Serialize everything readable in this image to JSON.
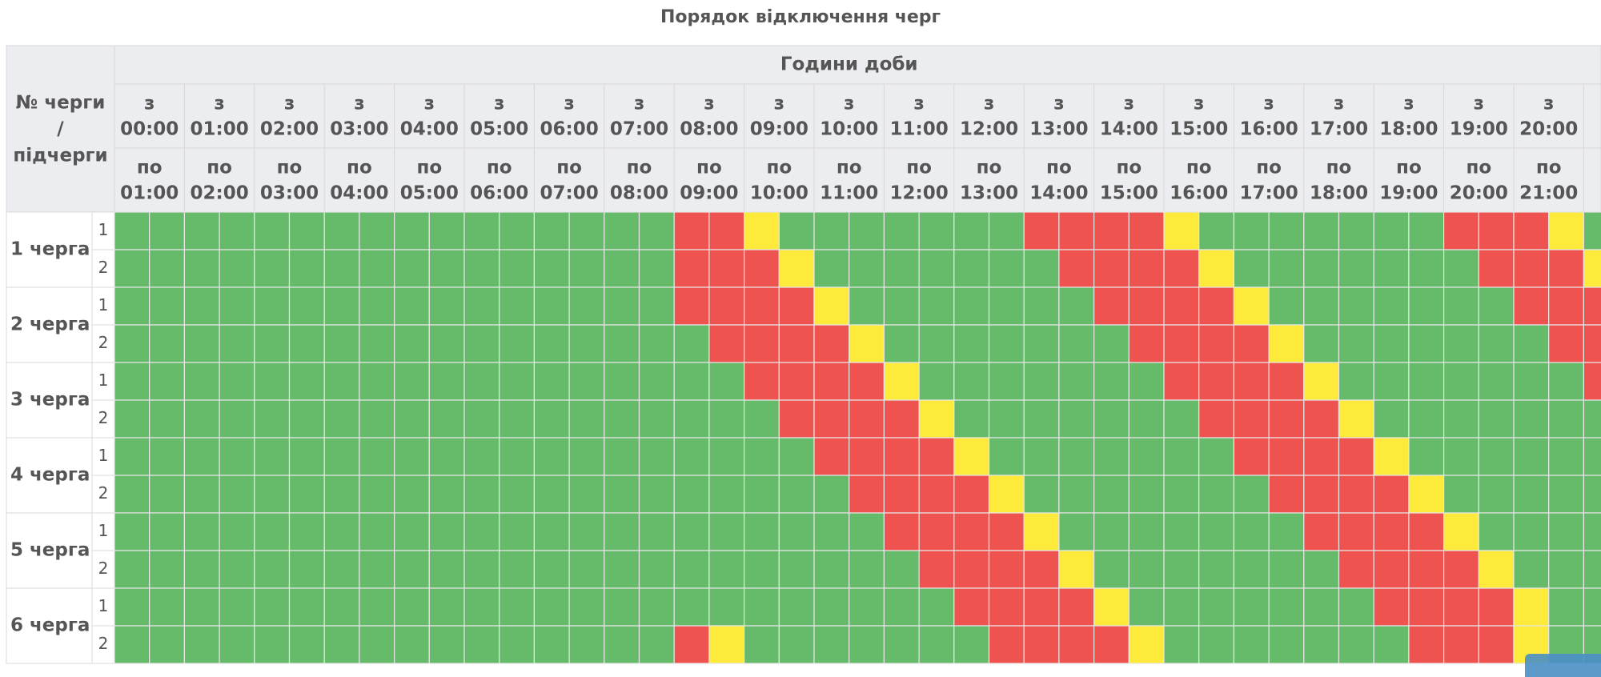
{
  "title": "Порядок відключення черг",
  "header": {
    "queue_column": [
      "№ черги",
      "/",
      "підчерги"
    ],
    "hours_label": "Години доби"
  },
  "columns": [
    {
      "from": [
        "з",
        "00:00"
      ],
      "to": [
        "по",
        "01:00"
      ]
    },
    {
      "from": [
        "з",
        "01:00"
      ],
      "to": [
        "по",
        "02:00"
      ]
    },
    {
      "from": [
        "з",
        "02:00"
      ],
      "to": [
        "по",
        "03:00"
      ]
    },
    {
      "from": [
        "з",
        "03:00"
      ],
      "to": [
        "по",
        "04:00"
      ]
    },
    {
      "from": [
        "з",
        "04:00"
      ],
      "to": [
        "по",
        "05:00"
      ]
    },
    {
      "from": [
        "з",
        "05:00"
      ],
      "to": [
        "по",
        "06:00"
      ]
    },
    {
      "from": [
        "з",
        "06:00"
      ],
      "to": [
        "по",
        "07:00"
      ]
    },
    {
      "from": [
        "з",
        "07:00"
      ],
      "to": [
        "по",
        "08:00"
      ]
    },
    {
      "from": [
        "з",
        "08:00"
      ],
      "to": [
        "по",
        "09:00"
      ]
    },
    {
      "from": [
        "з",
        "09:00"
      ],
      "to": [
        "по",
        "10:00"
      ]
    },
    {
      "from": [
        "з",
        "10:00"
      ],
      "to": [
        "по",
        "11:00"
      ]
    },
    {
      "from": [
        "з",
        "11:00"
      ],
      "to": [
        "по",
        "12:00"
      ]
    },
    {
      "from": [
        "з",
        "12:00"
      ],
      "to": [
        "по",
        "13:00"
      ]
    },
    {
      "from": [
        "з",
        "13:00"
      ],
      "to": [
        "по",
        "14:00"
      ]
    },
    {
      "from": [
        "з",
        "14:00"
      ],
      "to": [
        "по",
        "15:00"
      ]
    },
    {
      "from": [
        "з",
        "15:00"
      ],
      "to": [
        "по",
        "16:00"
      ]
    },
    {
      "from": [
        "з",
        "16:00"
      ],
      "to": [
        "по",
        "17:00"
      ]
    },
    {
      "from": [
        "з",
        "17:00"
      ],
      "to": [
        "по",
        "18:00"
      ]
    },
    {
      "from": [
        "з",
        "18:00"
      ],
      "to": [
        "по",
        "19:00"
      ]
    },
    {
      "from": [
        "з",
        "19:00"
      ],
      "to": [
        "по",
        "20:00"
      ]
    },
    {
      "from": [
        "з",
        "20:00"
      ],
      "to": [
        "по",
        "21:00"
      ]
    }
  ],
  "palette": {
    "G": "#66bb6a",
    "R": "#ef5350",
    "Y": "#fdea3b"
  },
  "queues": [
    {
      "label": "1 черга",
      "subs": [
        {
          "label": "1",
          "cells": "GGGGGGGGGGGGGGGGRRYGGGGGGGRRRRYGGGGGGGRRRYG"
        },
        {
          "label": "2",
          "cells": "GGGGGGGGGGGGGGGGRRRYGGGGGGGRRRRYGGGGGGGRRRY"
        }
      ]
    },
    {
      "label": "2 черга",
      "subs": [
        {
          "label": "1",
          "cells": "GGGGGGGGGGGGGGGGRRRRYGGGGGGGRRRRYGGGGGGGRRR"
        },
        {
          "label": "2",
          "cells": "GGGGGGGGGGGGGGGGGRRRRYGGGGGGGRRRRYGGGGGGGRR"
        }
      ]
    },
    {
      "label": "3 черга",
      "subs": [
        {
          "label": "1",
          "cells": "GGGGGGGGGGGGGGGGGGRRRRYGGGGGGGRRRRYGGGGGGGR"
        },
        {
          "label": "2",
          "cells": "GGGGGGGGGGGGGGGGGGGRRRRYGGGGGGGRRRRYGGGGGGG"
        }
      ]
    },
    {
      "label": "4 черга",
      "subs": [
        {
          "label": "1",
          "cells": "GGGGGGGGGGGGGGGGGGGGRRRRYGGGGGGGRRRRYGGGGGG"
        },
        {
          "label": "2",
          "cells": "GGGGGGGGGGGGGGGGGGGGGRRRRYGGGGGGGRRRRYGGGGG"
        }
      ]
    },
    {
      "label": "5 черга",
      "subs": [
        {
          "label": "1",
          "cells": "GGGGGGGGGGGGGGGGGGGGGGRRRRYGGGGGGGRRRRYGGGG"
        },
        {
          "label": "2",
          "cells": "GGGGGGGGGGGGGGGGGGGGGGGRRRRYGGGGGGGRRRRYGGG"
        }
      ]
    },
    {
      "label": "6 черга",
      "subs": [
        {
          "label": "1",
          "cells": "GGGGGGGGGGGGGGGGGGGGGGGGRRRRYGGGGGGGRRRRYGG"
        },
        {
          "label": "2",
          "cells": "GGGGGGGGGGGGGGGGRYGGGGGGGRRRRYGGGGGGGRRRYGG"
        }
      ]
    }
  ]
}
